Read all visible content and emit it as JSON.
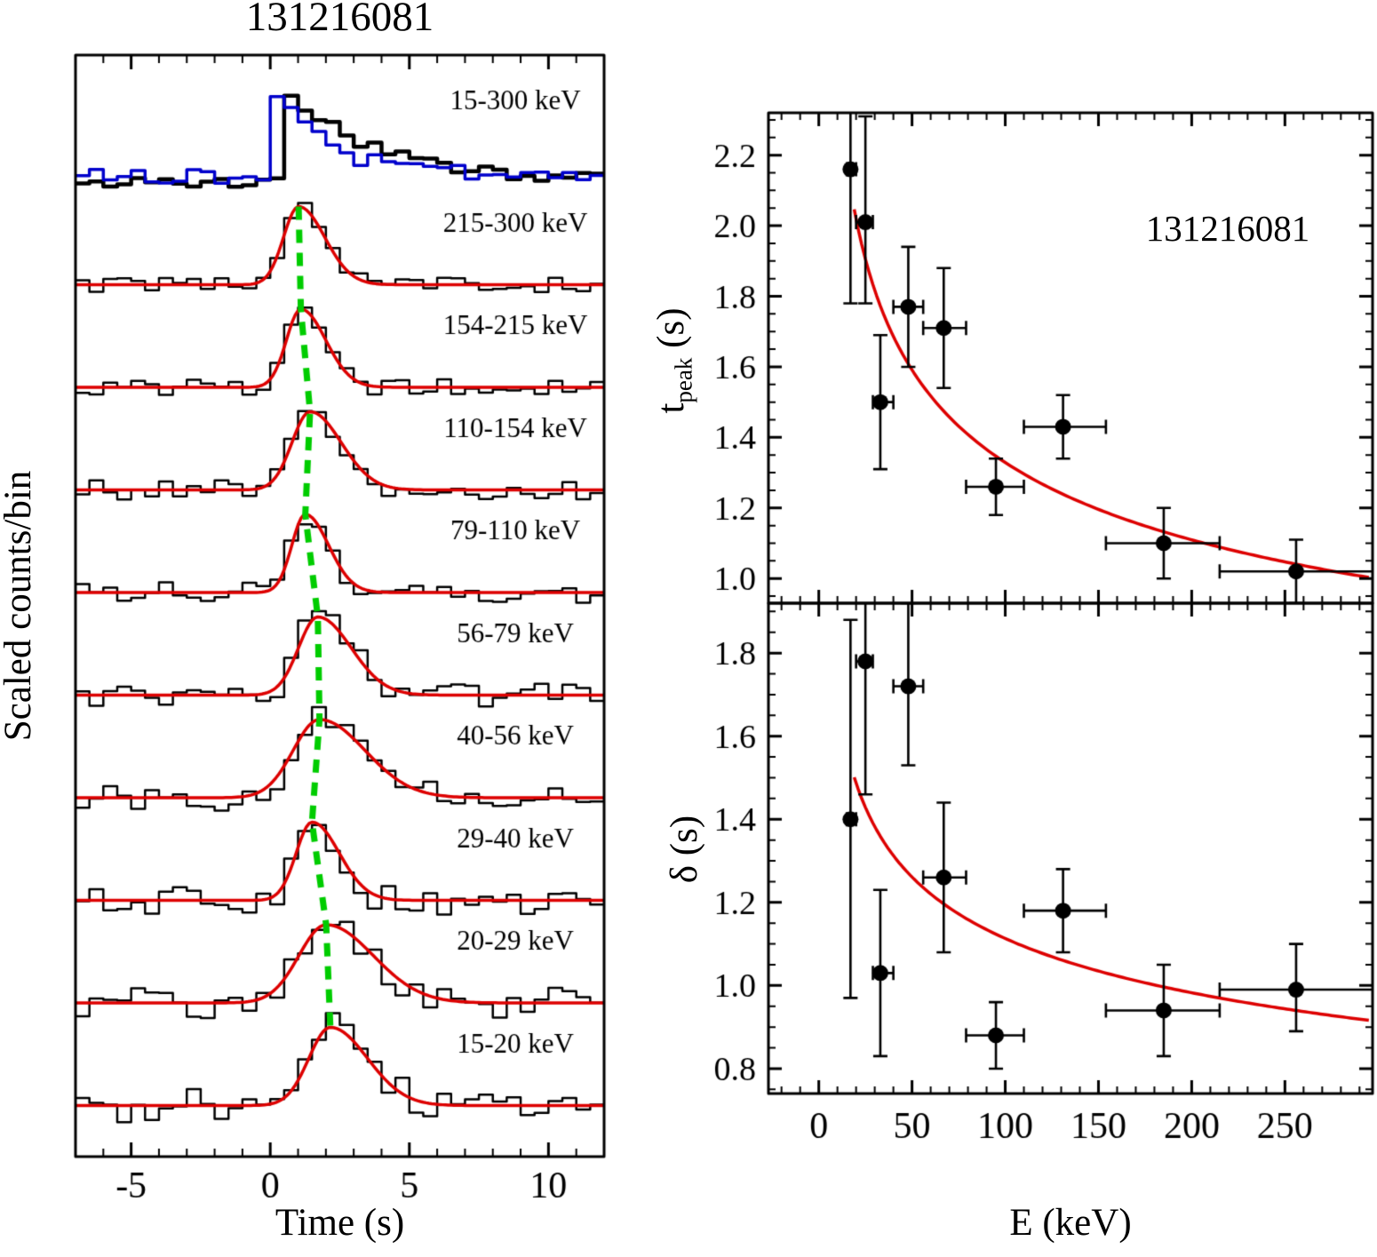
{
  "figure": {
    "id": "131216081"
  },
  "colors": {
    "histogram": "#000000",
    "composite_overlay": "#0000cc",
    "fit_curve": "#dd0000",
    "peak_track": "#00cc00",
    "marker": "#000000"
  },
  "chart_data": [
    {
      "type": "line",
      "subtype": "lightcurve-stack",
      "title": "131216081",
      "xlabel": "Time (s)",
      "ylabel": "Scaled counts/bin",
      "xlim": [
        -7,
        12
      ],
      "xticks": [
        -5,
        0,
        5,
        10
      ],
      "xminor": 1,
      "bin_width": 0.5,
      "bands": [
        {
          "label": "15-300 keV",
          "composite": true
        },
        {
          "label": "215-300 keV",
          "t_peak": 1.02,
          "width": 0.99
        },
        {
          "label": "154-215 keV",
          "t_peak": 1.1,
          "width": 0.94
        },
        {
          "label": "110-154 keV",
          "t_peak": 1.43,
          "width": 1.18
        },
        {
          "label": "79-110 keV",
          "t_peak": 1.26,
          "width": 0.88
        },
        {
          "label": "56-79 keV",
          "t_peak": 1.71,
          "width": 1.26
        },
        {
          "label": "40-56 keV",
          "t_peak": 1.77,
          "width": 1.72
        },
        {
          "label": "29-40 keV",
          "t_peak": 1.5,
          "width": 1.03
        },
        {
          "label": "20-29 keV",
          "t_peak": 2.01,
          "width": 1.78
        },
        {
          "label": "15-20 keV",
          "t_peak": 2.16,
          "width": 1.4
        }
      ]
    },
    {
      "type": "scatter",
      "annotation": "131216081",
      "ylabel": {
        "main": "t",
        "sub": "peak",
        "unit": " (s)"
      },
      "xlim": [
        -27,
        297
      ],
      "ylim": [
        0.93,
        2.32
      ],
      "yticks": [
        1.0,
        1.2,
        1.4,
        1.6,
        1.8,
        2.0,
        2.2
      ],
      "yminor": 0.05,
      "xticks": [
        0,
        50,
        100,
        150,
        200,
        250
      ],
      "xminor": 10,
      "show_x_tick_labels": false,
      "x": [
        17,
        25,
        33,
        48,
        67,
        95,
        131,
        185,
        256
      ],
      "y": [
        2.16,
        2.01,
        1.5,
        1.77,
        1.71,
        1.26,
        1.43,
        1.1,
        1.02
      ],
      "xerr_lo": [
        2,
        5,
        4,
        8,
        11,
        16,
        21,
        31,
        41
      ],
      "xerr_hi": [
        3,
        4,
        7,
        8,
        12,
        15,
        23,
        30,
        44
      ],
      "yerr_lo": [
        0.38,
        0.23,
        0.19,
        0.17,
        0.17,
        0.08,
        0.09,
        0.1,
        0.09
      ],
      "yerr_hi": [
        0.38,
        0.3,
        0.19,
        0.17,
        0.17,
        0.08,
        0.09,
        0.1,
        0.09
      ],
      "fit": {
        "model": "powerlaw",
        "norm": 4.4,
        "index": -0.26
      }
    },
    {
      "type": "scatter",
      "xlabel": "E (keV)",
      "ylabel": "δ (s)",
      "xlim": [
        -27,
        297
      ],
      "ylim": [
        0.74,
        1.92
      ],
      "yticks": [
        0.8,
        1.0,
        1.2,
        1.4,
        1.6,
        1.8
      ],
      "yminor": 0.05,
      "xticks": [
        0,
        50,
        100,
        150,
        200,
        250
      ],
      "xminor": 10,
      "show_x_tick_labels": true,
      "x": [
        17,
        25,
        33,
        48,
        67,
        95,
        131,
        185,
        256
      ],
      "y": [
        1.4,
        1.78,
        1.03,
        1.72,
        1.26,
        0.88,
        1.18,
        0.94,
        0.99
      ],
      "xerr_lo": [
        2,
        5,
        4,
        8,
        11,
        16,
        21,
        31,
        41
      ],
      "xerr_hi": [
        3,
        4,
        7,
        8,
        12,
        15,
        23,
        30,
        44
      ],
      "yerr_lo": [
        0.43,
        0.32,
        0.2,
        0.19,
        0.18,
        0.08,
        0.1,
        0.11,
        0.1
      ],
      "yerr_hi": [
        0.48,
        0.33,
        0.2,
        0.2,
        0.18,
        0.08,
        0.1,
        0.11,
        0.11
      ],
      "fit": {
        "model": "powerlaw",
        "norm": 2.55,
        "index": -0.18
      }
    }
  ]
}
